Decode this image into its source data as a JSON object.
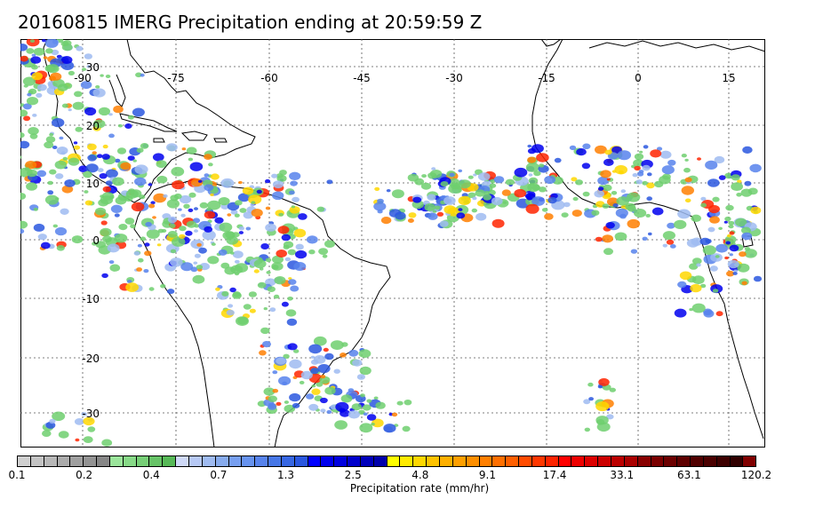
{
  "title": "20160815 IMERG Precipitation ending at 20:59:59 Z",
  "map": {
    "lon_ticks": [
      "-90",
      "-75",
      "-60",
      "-45",
      "-30",
      "-15",
      "0",
      "15"
    ],
    "lat_ticks": [
      "30",
      "20",
      "10",
      "0",
      "-10",
      "-20",
      "-30"
    ]
  },
  "colorbar": {
    "colors": [
      "#cfcfcf",
      "#c3c3c3",
      "#b7b7b7",
      "#ababab",
      "#9f9f9f",
      "#939393",
      "#878787",
      "#9be59b",
      "#87d987",
      "#77cf77",
      "#67c367",
      "#57b957",
      "#cfd9f7",
      "#b7c9f5",
      "#9fbbf1",
      "#87abed",
      "#779ff0",
      "#6793ef",
      "#5783ec",
      "#4777e7",
      "#3767e3",
      "#2a57df",
      "#0000ff",
      "#0000ee",
      "#0000de",
      "#0000cc",
      "#0000bb",
      "#0000ab",
      "#ffff00",
      "#ffeb00",
      "#ffd700",
      "#ffc300",
      "#ffb000",
      "#ff9f00",
      "#ff8f00",
      "#ff7f00",
      "#ff6f00",
      "#ff5f00",
      "#ff4b00",
      "#ff3700",
      "#ff2400",
      "#ff0000",
      "#ee0000",
      "#dd0000",
      "#cc0000",
      "#bb0000",
      "#aa0000",
      "#880000",
      "#7a0000",
      "#6c0000",
      "#5e0000",
      "#500000",
      "#4a0000",
      "#3d0000",
      "#300000",
      "#800000"
    ],
    "tick_labels": [
      "0.1",
      "0.2",
      "0.4",
      "0.7",
      "1.3",
      "2.5",
      "4.8",
      "9.1",
      "17.4",
      "33.1",
      "63.1",
      "120.2"
    ],
    "title": "Precipitation rate (mm/hr)"
  }
}
